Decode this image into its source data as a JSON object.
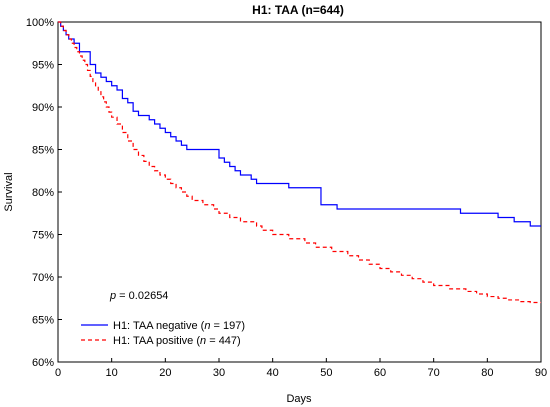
{
  "chart_data": {
    "type": "line",
    "title": "H1: TAA (n=644)",
    "xlabel": "Days",
    "ylabel": "Survival",
    "xlim": [
      0,
      90
    ],
    "ylim": [
      0.6,
      1.0
    ],
    "x_ticks": [
      "0",
      "10",
      "20",
      "30",
      "40",
      "50",
      "60",
      "70",
      "80",
      "90"
    ],
    "y_ticks": [
      "60%",
      "65%",
      "70%",
      "75%",
      "80%",
      "85%",
      "90%",
      "95%",
      "100%"
    ],
    "grid": false,
    "legend_position": "bottom-left",
    "annotation": {
      "prefix": "p",
      "value": " = 0.02654"
    },
    "series": [
      {
        "name_main": "H1: TAA negative (",
        "name_italic": "n",
        "name_tail": " = 197)",
        "color": "#0000ff",
        "style": "solid",
        "x": [
          0,
          0.5,
          1,
          1.5,
          2,
          3,
          4,
          6,
          7,
          8,
          9,
          10,
          11,
          12,
          13,
          14,
          15,
          17,
          18,
          19,
          20,
          21,
          22,
          23,
          24,
          30,
          31,
          32,
          33,
          34,
          36,
          37,
          43,
          49,
          52,
          75,
          82,
          85,
          88,
          90
        ],
        "y": [
          1.0,
          0.995,
          0.99,
          0.985,
          0.98,
          0.975,
          0.965,
          0.95,
          0.94,
          0.935,
          0.93,
          0.925,
          0.92,
          0.91,
          0.905,
          0.895,
          0.89,
          0.885,
          0.88,
          0.875,
          0.87,
          0.865,
          0.86,
          0.855,
          0.85,
          0.84,
          0.835,
          0.83,
          0.825,
          0.82,
          0.815,
          0.81,
          0.805,
          0.785,
          0.78,
          0.775,
          0.77,
          0.765,
          0.76,
          0.76
        ]
      },
      {
        "name_main": "H1: TAA positive (",
        "name_italic": "n",
        "name_tail": " = 447)",
        "color": "#ff0000",
        "style": "dashed",
        "x": [
          0,
          0.5,
          1,
          1.5,
          2,
          2.5,
          3,
          3.5,
          4,
          4.5,
          5,
          5.5,
          6,
          6.5,
          7,
          7.5,
          8,
          8.5,
          9,
          9.5,
          10,
          11,
          12,
          13,
          14,
          15,
          16,
          17,
          18,
          19,
          20,
          21,
          22,
          23,
          24,
          25,
          27,
          29,
          30,
          32,
          34,
          37,
          38,
          40,
          43,
          46,
          48,
          51,
          54,
          56,
          58,
          60,
          62,
          64,
          66,
          68,
          70,
          73,
          76,
          78,
          80,
          82,
          84,
          86,
          88,
          90
        ],
        "y": [
          1.0,
          0.995,
          0.99,
          0.985,
          0.98,
          0.975,
          0.97,
          0.965,
          0.96,
          0.955,
          0.95,
          0.943,
          0.936,
          0.93,
          0.924,
          0.918,
          0.912,
          0.906,
          0.9,
          0.894,
          0.888,
          0.88,
          0.87,
          0.86,
          0.85,
          0.843,
          0.836,
          0.83,
          0.825,
          0.82,
          0.815,
          0.81,
          0.805,
          0.8,
          0.795,
          0.79,
          0.785,
          0.78,
          0.775,
          0.77,
          0.765,
          0.76,
          0.755,
          0.75,
          0.745,
          0.74,
          0.735,
          0.73,
          0.725,
          0.72,
          0.715,
          0.71,
          0.706,
          0.702,
          0.698,
          0.694,
          0.69,
          0.686,
          0.683,
          0.68,
          0.677,
          0.675,
          0.673,
          0.671,
          0.67,
          0.67
        ]
      }
    ]
  }
}
